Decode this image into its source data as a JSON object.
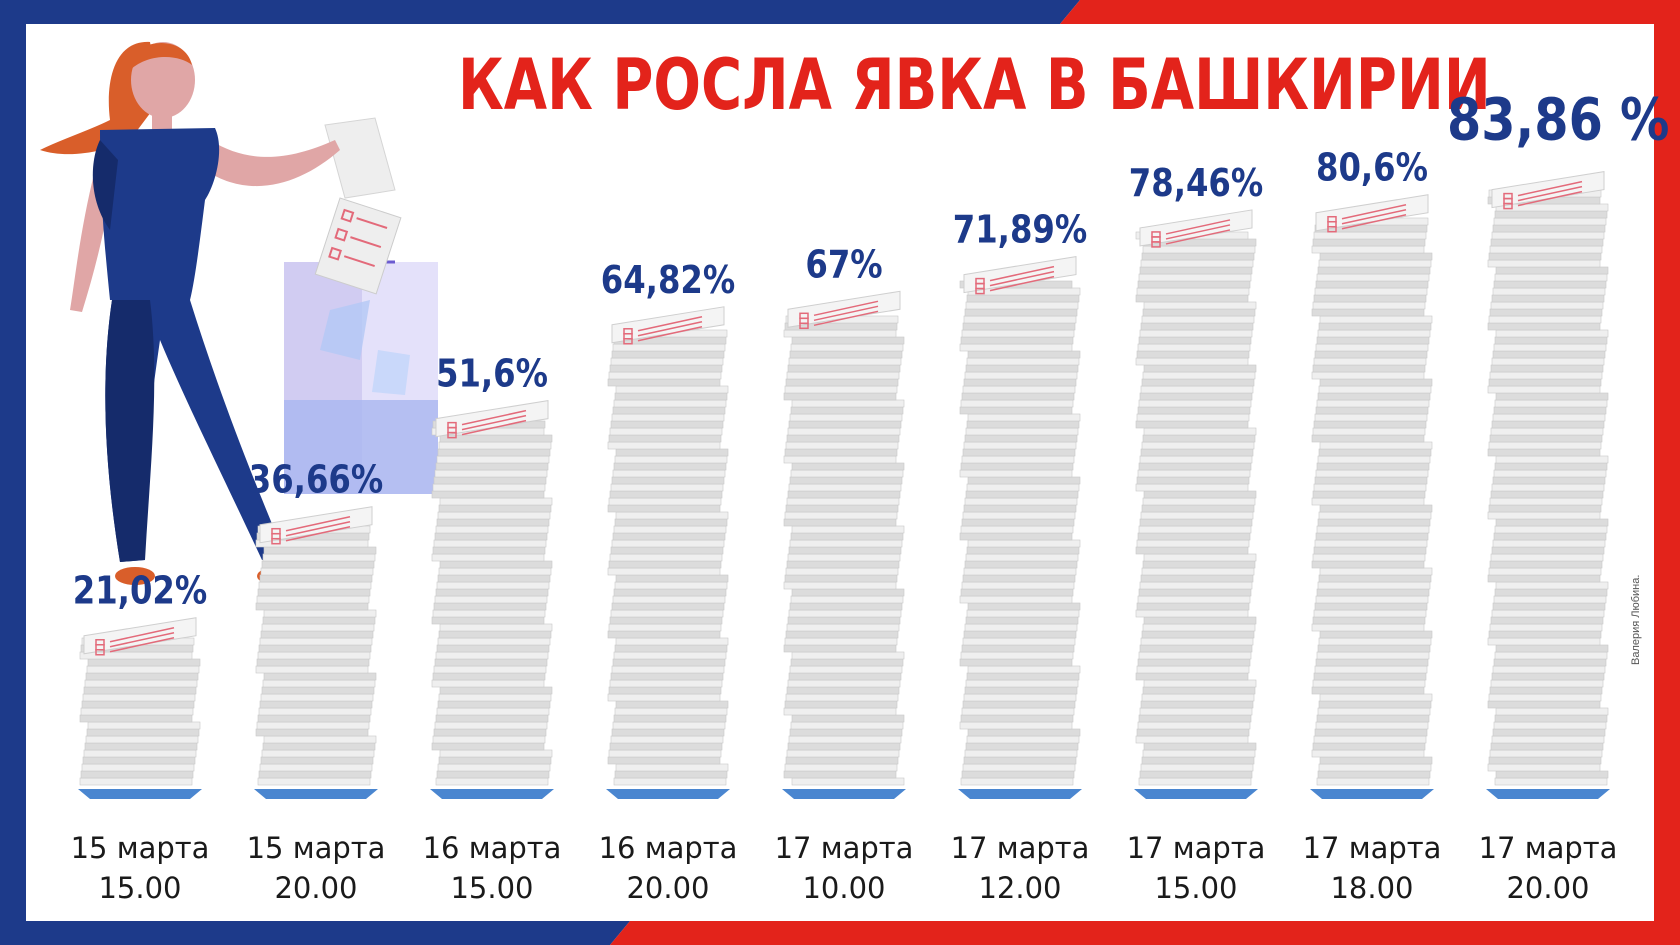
{
  "title": "КАК РОСЛА ЯВКА В БАШКИРИИ",
  "credit": "Валерия Любина.",
  "colors": {
    "blue": "#1d3a8a",
    "red": "#e3231b",
    "paper": "#e6e6e6",
    "base": "#4a86d0"
  },
  "chart_data": {
    "type": "bar",
    "title": "КАК РОСЛА ЯВКА В БАШКИРИИ",
    "ylim": [
      0,
      100
    ],
    "categories": [
      [
        "15 марта",
        "15.00"
      ],
      [
        "15 марта",
        "20.00"
      ],
      [
        "16 марта",
        "15.00"
      ],
      [
        "16 марта",
        "20.00"
      ],
      [
        "17 марта",
        "10.00"
      ],
      [
        "17 марта",
        "12.00"
      ],
      [
        "17 марта",
        "15.00"
      ],
      [
        "17 марта",
        "18.00"
      ],
      [
        "17 марта",
        "20.00"
      ]
    ],
    "values": [
      21.02,
      36.66,
      51.6,
      64.82,
      67,
      71.89,
      78.46,
      80.6,
      83.86
    ],
    "value_labels": [
      "21,02%",
      "36,66%",
      "51,6%",
      "64,82%",
      "67%",
      "71,89%",
      "78,46%",
      "80,6%",
      "83,86 %"
    ]
  }
}
